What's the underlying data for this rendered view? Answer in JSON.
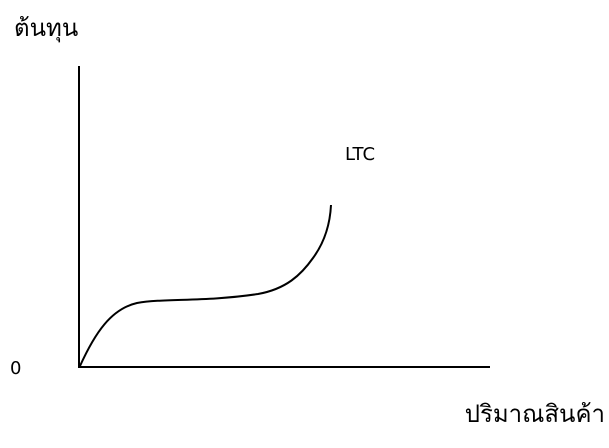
{
  "diagram": {
    "y_axis_label": "ต้นทุน",
    "x_axis_label": "ปริมาณสินค้า",
    "origin_label": "0",
    "curve_label": "LTC",
    "line_color": "#000000",
    "background_color": "#ffffff"
  }
}
